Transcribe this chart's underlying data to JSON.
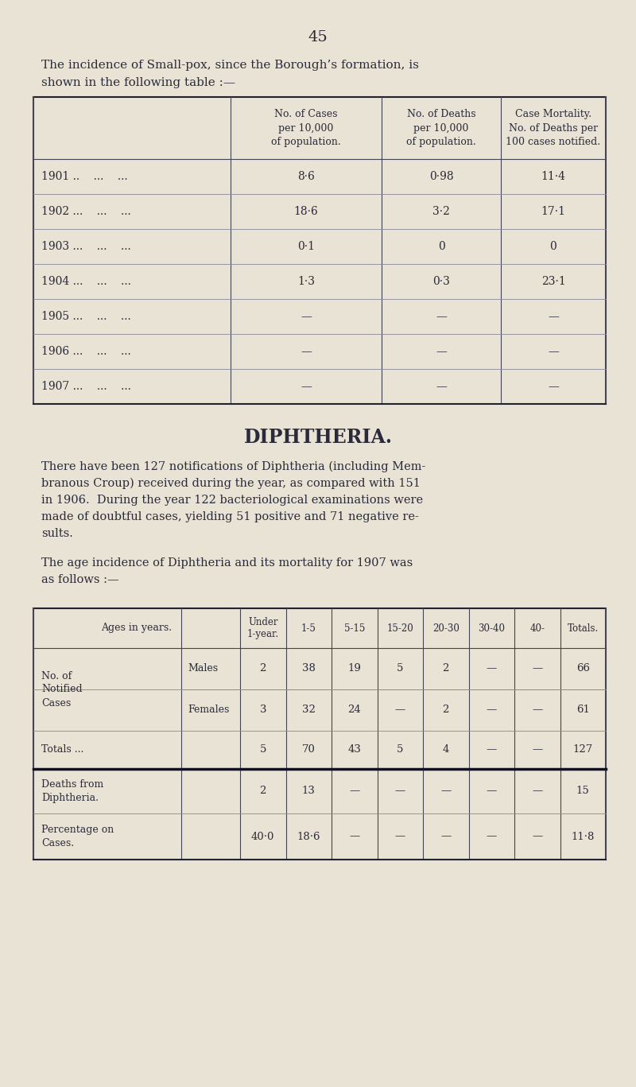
{
  "page_number": "45",
  "bg_color": "#e8e3d5",
  "text_color": "#2a2a3a",
  "intro_text_line1": "The incidence of Small-pox, since the Borough’s formation, is",
  "intro_text_line2": "shown in the following table :—",
  "smallpox_col_headers": [
    "No. of Cases\nper 10,000\nof population.",
    "No. of Deaths\nper 10,000\nof population.",
    "Case Mortality.\nNo. of Deaths per\n100 cases notified."
  ],
  "smallpox_rows": [
    [
      "1901 ..    ...    ...",
      "8·6",
      "0·98",
      "11·4"
    ],
    [
      "1902 ...    ...    ...",
      "18·6",
      "3·2",
      "17·1"
    ],
    [
      "1903 ...    ...    ...",
      "0·1",
      "0",
      "0"
    ],
    [
      "1904 ...    ...    ...",
      "1·3",
      "0·3",
      "23·1"
    ],
    [
      "1905 ...    ...    ...",
      "—",
      "—",
      "—"
    ],
    [
      "1906 ...    ...    ...",
      "—",
      "—",
      "—"
    ],
    [
      "1907 ...    ...    ...",
      "—",
      "—",
      "—"
    ]
  ],
  "diphtheria_title": "DIPHTHERIA.",
  "diph_para1_lines": [
    "There have been 127 notifications of Diphtheria (including Mem-",
    "branous Croup) received during the year, as compared with 151",
    "in 1906.  During the year 122 bacteriological examinations were",
    "made of doubtful cases, yielding 51 positive and 71 negative re-",
    "sults."
  ],
  "diph_para2_lines": [
    "The age incidence of Diphtheria and its mortality for 1907 was",
    "as follows :—"
  ],
  "diph_col_headers": [
    "Ages in years.",
    "Under\n1-year.",
    "1-5",
    "5-15",
    "15-20",
    "20-30",
    "30-40",
    "40-",
    "Totals."
  ],
  "diph_rows": [
    {
      "label": "No. of\nNotified\nCases",
      "sub": "Males",
      "vals": [
        "2",
        "38",
        "19",
        "5",
        "2",
        "—",
        "—",
        "66"
      ]
    },
    {
      "label": "",
      "sub": "Females",
      "vals": [
        "3",
        "32",
        "24",
        "—",
        "2",
        "—",
        "—",
        "61"
      ]
    },
    {
      "label": "Totals ...",
      "sub": "",
      "vals": [
        "5",
        "70",
        "43",
        "5",
        "4",
        "—",
        "—",
        "127"
      ]
    },
    {
      "label": "Deaths from\nDiphtheria.",
      "sub": "",
      "vals": [
        "2",
        "13",
        "—",
        "—",
        "—",
        "—",
        "—",
        "15"
      ]
    },
    {
      "label": "Percentage on\nCases.",
      "sub": "",
      "vals": [
        "40·0",
        "18·6",
        "—",
        "—",
        "—",
        "—",
        "—",
        "11·8"
      ]
    }
  ]
}
